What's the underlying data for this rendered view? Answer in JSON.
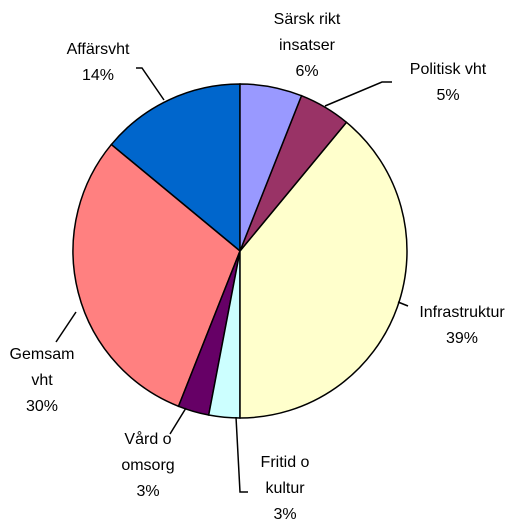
{
  "chart_data": {
    "type": "pie",
    "categories": [
      "Särsk rikt insatser",
      "Politisk vht",
      "Infrastruktur",
      "Fritid o kultur",
      "Vård o omsorg",
      "Gemsam vht",
      "Affärsvht"
    ],
    "values": [
      6,
      5,
      39,
      3,
      3,
      30,
      14
    ],
    "value_labels": [
      "6%",
      "5%",
      "39%",
      "3%",
      "3%",
      "30%",
      "14%"
    ],
    "colors": [
      "#9999ff",
      "#993366",
      "#ffffcc",
      "#ccffff",
      "#660066",
      "#ff8080",
      "#0066cc"
    ]
  }
}
